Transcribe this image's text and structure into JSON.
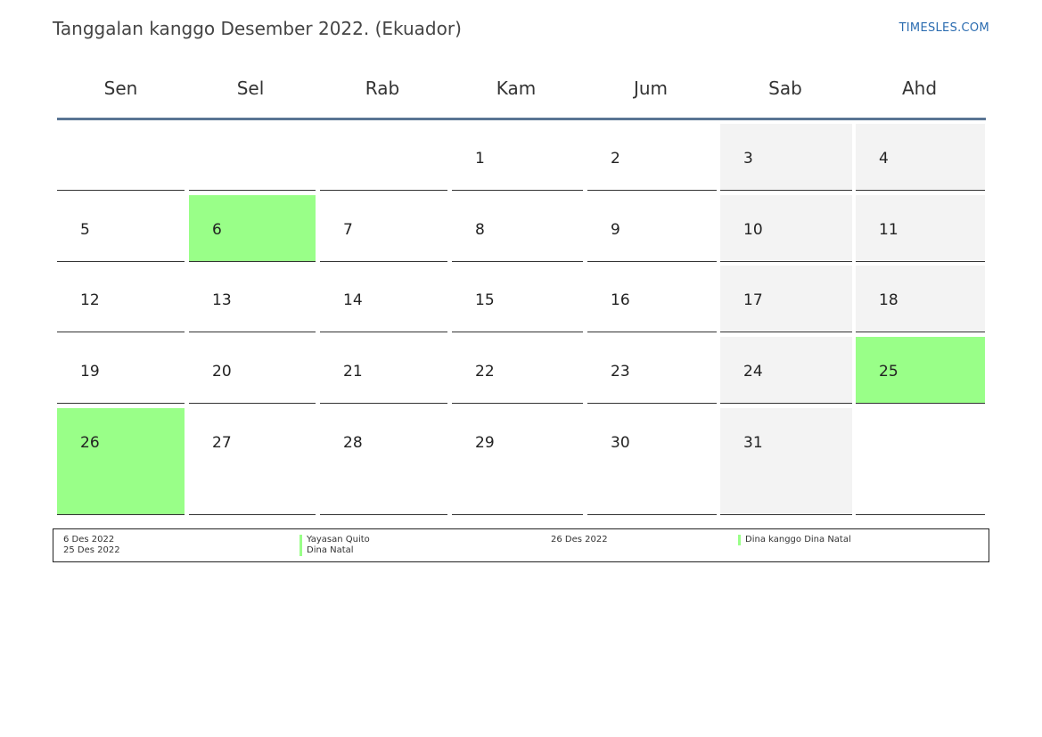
{
  "header": {
    "title": "Tanggalan kanggo Desember 2022. (Ekuador)",
    "brand": "TIMESLES.COM"
  },
  "weekdays": [
    "Sen",
    "Sel",
    "Rab",
    "Kam",
    "Jum",
    "Sab",
    "Ahd"
  ],
  "colors": {
    "holiday": "#99ff88",
    "weekend": "#f3f3f3",
    "header_rule": "#5a7594",
    "brand": "#2b6cb0"
  },
  "calendar": {
    "month": "Desember",
    "year": "2022",
    "weeks": [
      [
        null,
        null,
        null,
        1,
        2,
        3,
        4
      ],
      [
        5,
        6,
        7,
        8,
        9,
        10,
        11
      ],
      [
        12,
        13,
        14,
        15,
        16,
        17,
        18
      ],
      [
        19,
        20,
        21,
        22,
        23,
        24,
        25
      ],
      [
        26,
        27,
        28,
        29,
        30,
        31,
        null
      ]
    ],
    "holiday_days": [
      6,
      25,
      26
    ]
  },
  "legend": {
    "items": [
      {
        "date": "6 Des 2022",
        "name": "Yayasan Quito"
      },
      {
        "date": "25 Des 2022",
        "name": "Dina Natal"
      },
      {
        "date": "26 Des 2022",
        "name": "Dina kanggo Dina Natal"
      }
    ]
  }
}
